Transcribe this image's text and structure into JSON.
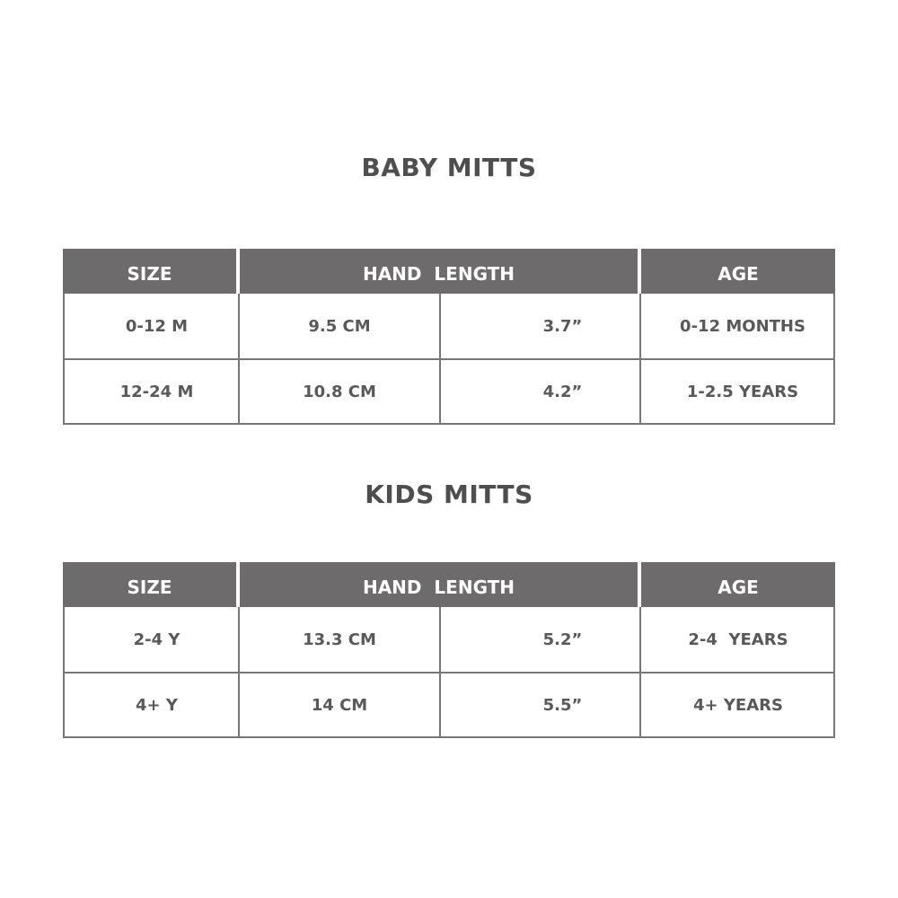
{
  "tables": [
    {
      "title": "BABY MITTS",
      "headers": {
        "size": "SIZE",
        "hand_length": "HAND  LENGTH",
        "age": "AGE"
      },
      "rows": [
        {
          "size": "0-12 M",
          "cm": "9.5 CM",
          "inch": "3.7”",
          "age": "0-12 MONTHS"
        },
        {
          "size": "12-24 M",
          "cm": "10.8 CM",
          "inch": "4.2”",
          "age": "1-2.5 YEARS"
        }
      ]
    },
    {
      "title": "KIDS MITTS",
      "headers": {
        "size": "SIZE",
        "hand_length": "HAND  LENGTH",
        "age": "AGE"
      },
      "rows": [
        {
          "size": "2-4 Y",
          "cm": "13.3 CM",
          "inch": "5.2”",
          "age": "2-4  YEARS"
        },
        {
          "size": "4+ Y",
          "cm": "14 CM",
          "inch": "5.5”",
          "age": "4+ YEARS"
        }
      ]
    }
  ]
}
